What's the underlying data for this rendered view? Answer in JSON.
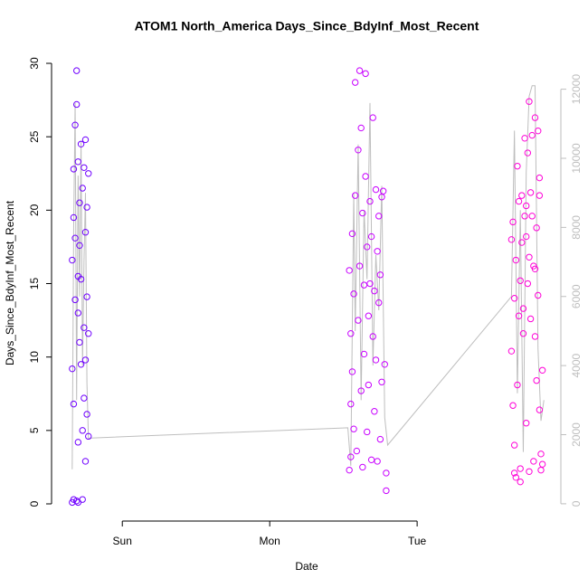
{
  "chart_data": {
    "type": "scatter",
    "title": "ATOM1 North_America Days_Since_BdyInf_Most_Recent",
    "x_label": "Date",
    "y_label": "Days_Since_BdyInf_Most_Recent",
    "xlim": [
      0.52,
      3.975
    ],
    "ylim": [
      -1.17,
      31.11
    ],
    "y2lim": [
      -500,
      13220
    ],
    "xticks": [
      {
        "value": 1,
        "label": "Sun"
      },
      {
        "value": 2,
        "label": "Mon"
      },
      {
        "value": 3,
        "label": "Tue"
      }
    ],
    "yticks": [
      0,
      5,
      10,
      15,
      20,
      25,
      30
    ],
    "y2ticks": [
      0,
      2000,
      4000,
      6000,
      8000,
      10000,
      12000
    ],
    "y2_color": "#bebebe",
    "series": [
      {
        "color": "#bebebe",
        "axis": "y2",
        "mode": "line",
        "x": [
          0.66,
          0.67,
          0.68,
          0.69,
          0.7,
          0.71,
          0.72,
          0.73,
          0.74,
          0.75,
          0.76,
          0.77,
          2.53,
          2.55,
          2.57,
          2.58,
          2.6,
          2.62,
          2.64,
          2.66,
          2.68,
          2.7,
          2.72,
          2.74,
          2.76,
          2.78,
          2.8,
          3.64,
          3.66,
          3.68,
          3.7,
          3.72,
          3.74,
          3.76,
          3.78,
          3.8,
          3.82,
          3.84,
          3.86
        ],
        "values": [
          1000,
          8000,
          11600,
          3000,
          9500,
          6000,
          10500,
          4000,
          7000,
          9000,
          3500,
          1900,
          2200,
          1100,
          9000,
          5000,
          10400,
          3000,
          8500,
          6500,
          11600,
          4000,
          7200,
          5600,
          9200,
          2500,
          1700,
          6000,
          10800,
          3200,
          8500,
          1500,
          9600,
          11800,
          12100,
          12100,
          4500,
          2400,
          3000
        ]
      },
      {
        "color": "#7000ff",
        "mode": "points",
        "x": [
          0.66,
          0.66,
          0.66,
          0.67,
          0.67,
          0.67,
          0.67,
          0.68,
          0.68,
          0.68,
          0.69,
          0.69,
          0.69,
          0.7,
          0.7,
          0.7,
          0.7,
          0.71,
          0.71,
          0.71,
          0.72,
          0.72,
          0.72,
          0.73,
          0.73,
          0.73,
          0.74,
          0.74,
          0.74,
          0.75,
          0.75,
          0.75,
          0.75,
          0.76,
          0.76,
          0.76,
          0.77,
          0.77,
          0.77,
          0.7
        ],
        "values": [
          0.1,
          9.2,
          16.6,
          0.3,
          19.5,
          22.8,
          6.8,
          25.8,
          13.9,
          18.1,
          29.5,
          27.2,
          0.2,
          0.1,
          4.2,
          13.0,
          23.3,
          11.0,
          17.6,
          20.5,
          9.5,
          24.5,
          15.3,
          0.3,
          5.0,
          21.5,
          22.9,
          12.0,
          7.2,
          9.8,
          18.5,
          24.8,
          2.9,
          20.2,
          14.1,
          6.1,
          22.5,
          11.6,
          4.6,
          15.5
        ]
      },
      {
        "color": "#c800ff",
        "mode": "points",
        "x": [
          2.54,
          2.54,
          2.55,
          2.55,
          2.55,
          2.56,
          2.56,
          2.57,
          2.57,
          2.58,
          2.58,
          2.59,
          2.6,
          2.6,
          2.61,
          2.61,
          2.62,
          2.62,
          2.63,
          2.63,
          2.64,
          2.64,
          2.65,
          2.65,
          2.66,
          2.66,
          2.67,
          2.67,
          2.68,
          2.68,
          2.69,
          2.69,
          2.7,
          2.7,
          2.71,
          2.71,
          2.72,
          2.72,
          2.73,
          2.73,
          2.74,
          2.74,
          2.75,
          2.75,
          2.76,
          2.76,
          2.77,
          2.78,
          2.79,
          2.79
        ],
        "values": [
          2.3,
          15.9,
          6.8,
          3.2,
          11.6,
          18.4,
          9.0,
          5.1,
          14.3,
          28.7,
          21.0,
          3.6,
          24.1,
          12.5,
          16.2,
          29.5,
          7.7,
          25.6,
          2.5,
          19.8,
          14.9,
          10.2,
          29.3,
          22.3,
          4.9,
          17.5,
          12.8,
          8.1,
          20.6,
          15.0,
          3.0,
          18.2,
          26.3,
          11.4,
          14.5,
          6.3,
          21.4,
          9.8,
          2.9,
          17.2,
          13.7,
          19.6,
          4.4,
          15.6,
          20.9,
          8.3,
          21.3,
          9.5,
          0.9,
          2.1
        ]
      },
      {
        "color": "#ff00d8",
        "mode": "points",
        "x": [
          3.64,
          3.64,
          3.65,
          3.65,
          3.66,
          3.66,
          3.67,
          3.67,
          3.68,
          3.68,
          3.69,
          3.69,
          3.7,
          3.7,
          3.71,
          3.71,
          3.72,
          3.72,
          3.73,
          3.73,
          3.74,
          3.74,
          3.75,
          3.75,
          3.76,
          3.76,
          3.77,
          3.77,
          3.78,
          3.78,
          3.79,
          3.79,
          3.8,
          3.8,
          3.81,
          3.81,
          3.82,
          3.82,
          3.83,
          3.83,
          3.84,
          3.84,
          3.85,
          3.85,
          3.76,
          3.74,
          3.7,
          3.66,
          3.8,
          3.83
        ],
        "values": [
          10.4,
          18.0,
          6.7,
          19.2,
          2.1,
          14.0,
          1.8,
          16.6,
          23.0,
          8.1,
          12.8,
          20.6,
          2.4,
          15.2,
          21.0,
          17.8,
          11.6,
          13.3,
          19.6,
          24.9,
          5.5,
          18.2,
          23.9,
          15.0,
          2.2,
          16.8,
          21.2,
          12.6,
          25.1,
          19.6,
          2.9,
          16.2,
          26.3,
          11.4,
          18.8,
          8.4,
          25.4,
          14.2,
          6.4,
          21.0,
          2.3,
          3.4,
          2.7,
          9.1,
          27.4,
          20.3,
          1.5,
          4.0,
          16.0,
          22.2
        ]
      }
    ]
  }
}
